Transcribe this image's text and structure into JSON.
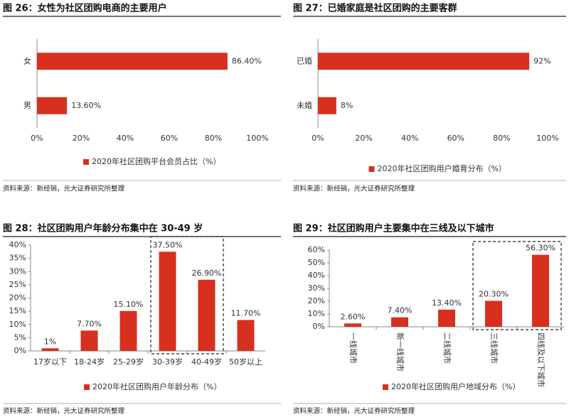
{
  "chart_data": [
    {
      "type": "bar",
      "orientation": "horizontal",
      "title": "图 26：女性为社区团购电商的主要用户",
      "categories": [
        "女",
        "男"
      ],
      "series": [
        {
          "name": "2020年社区团购平台会员占比（%）",
          "color": "#d7301f",
          "values": [
            86.4,
            13.6
          ],
          "value_labels": [
            "86.40%",
            "13.60%"
          ]
        }
      ],
      "xlim": [
        0,
        100
      ],
      "xticks": [
        {
          "value": 0,
          "label": "0%"
        },
        {
          "value": 20,
          "label": "20%"
        },
        {
          "value": 40,
          "label": "40%"
        },
        {
          "value": 60,
          "label": "60%"
        },
        {
          "value": 80,
          "label": "80%"
        },
        {
          "value": 100,
          "label": "100%"
        }
      ],
      "source": "资料来源：新经销，光大证券研究所整理"
    },
    {
      "type": "bar",
      "orientation": "horizontal",
      "title": "图 27：已婚家庭是社区团购的主要客群",
      "categories": [
        "已婚",
        "未婚"
      ],
      "series": [
        {
          "name": "2020年社区团购用户婚育分布（%）",
          "color": "#d7301f",
          "values": [
            92,
            8
          ],
          "value_labels": [
            "92%",
            "8%"
          ]
        }
      ],
      "xlim": [
        0,
        100
      ],
      "xticks": [
        {
          "value": 0,
          "label": "0%"
        },
        {
          "value": 20,
          "label": "20%"
        },
        {
          "value": 40,
          "label": "40%"
        },
        {
          "value": 60,
          "label": "60%"
        },
        {
          "value": 80,
          "label": "80%"
        },
        {
          "value": 100,
          "label": "100%"
        }
      ],
      "source": "资料来源：新经销，光大证券研究所整理"
    },
    {
      "type": "bar",
      "orientation": "vertical",
      "title": "图 28：社区团购用户年龄分布集中在 30-49 岁",
      "categories": [
        "17岁以下",
        "18-24岁",
        "25-29岁",
        "30-39岁",
        "40-49岁",
        "50岁以上"
      ],
      "series": [
        {
          "name": "2020年社区团购用户年龄分布（%）",
          "color": "#d7301f",
          "values": [
            1,
            7.7,
            15.1,
            37.5,
            26.9,
            11.7
          ],
          "value_labels": [
            "1%",
            "7.70%",
            "15.10%",
            "37.50%",
            "26.90%",
            "11.70%"
          ]
        }
      ],
      "ylim": [
        0,
        40
      ],
      "yticks": [
        {
          "value": 0,
          "label": "0%"
        },
        {
          "value": 5,
          "label": "5%"
        },
        {
          "value": 10,
          "label": "10%"
        },
        {
          "value": 15,
          "label": "15%"
        },
        {
          "value": 20,
          "label": "20%"
        },
        {
          "value": 25,
          "label": "25%"
        },
        {
          "value": 30,
          "label": "30%"
        },
        {
          "value": 35,
          "label": "35%"
        },
        {
          "value": 40,
          "label": "40%"
        }
      ],
      "highlight": [
        3,
        4
      ],
      "source": "资料来源：新经销，光大证券研究所整理"
    },
    {
      "type": "bar",
      "orientation": "vertical",
      "rotate_labels": true,
      "title": "图 29：社区团购用户主要集中在三线及以下城市",
      "categories": [
        "一线城市",
        "新一线城市",
        "二线城市",
        "三线城市",
        "四线及以下城市"
      ],
      "series": [
        {
          "name": "2020年社区团购用户地域分布（%）",
          "color": "#d7301f",
          "values": [
            2.6,
            7.4,
            13.4,
            20.3,
            56.3
          ],
          "value_labels": [
            "2.60%",
            "7.40%",
            "13.40%",
            "20.30%",
            "56.30%"
          ]
        }
      ],
      "ylim": [
        0,
        60
      ],
      "yticks": [
        {
          "value": 0,
          "label": "0%"
        },
        {
          "value": 10,
          "label": "10%"
        },
        {
          "value": 20,
          "label": "20%"
        },
        {
          "value": 30,
          "label": "30%"
        },
        {
          "value": 40,
          "label": "40%"
        },
        {
          "value": 50,
          "label": "50%"
        },
        {
          "value": 60,
          "label": "60%"
        }
      ],
      "highlight": [
        3,
        4
      ],
      "source": "资料来源：新经销，光大证券研究所整理"
    }
  ]
}
